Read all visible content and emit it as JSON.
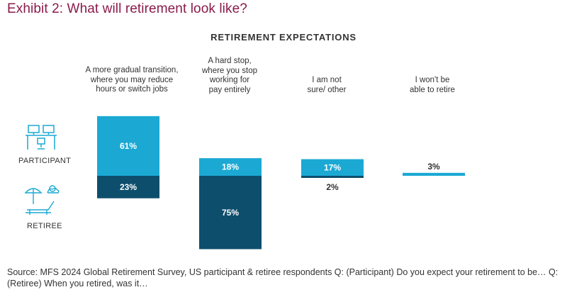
{
  "header": {
    "exhibit_title": "Exhibit 2: What will retirement look like?"
  },
  "chart_data": {
    "type": "bar",
    "title": "RETIREMENT EXPECTATIONS",
    "categories": [
      "A more gradual transition,\nwhere you may reduce\nhours or switch jobs",
      "A hard stop,\nwhere you stop\nworking for\npay entirely",
      "I am not\nsure/ other",
      "I won't be\nable to retire"
    ],
    "series": [
      {
        "name": "PARTICIPANT",
        "values": [
          61,
          18,
          17,
          3
        ],
        "labels": [
          "61%",
          "18%",
          "17%",
          "3%"
        ],
        "color": "#1ba9d4"
      },
      {
        "name": "RETIREE",
        "values": [
          23,
          75,
          2,
          null
        ],
        "labels": [
          "23%",
          "75%",
          "2%",
          ""
        ],
        "color": "#0d4e6c"
      }
    ],
    "xlabel": "",
    "ylabel": "",
    "legend": "left",
    "grid": false
  },
  "legend": {
    "participant_label": "PARTICIPANT",
    "retiree_label": "RETIREE",
    "participant_icon": "office-desk-icon",
    "retiree_icon": "beach-lounger-icon"
  },
  "footer": {
    "source": "Source: MFS 2024 Global Retirement Survey, US participant & retiree respondents Q: (Participant) Do you expect your retirement to be… Q: (Retiree) When you retired, was it…"
  }
}
